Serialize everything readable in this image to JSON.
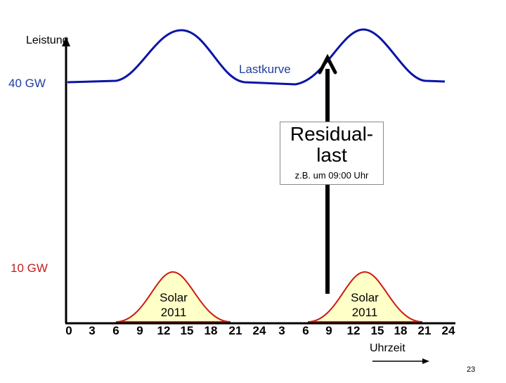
{
  "y_axis": {
    "title": "Leistung",
    "label_high": "40 GW",
    "label_low": "10 GW"
  },
  "load_curve": {
    "label": "Lastkurve"
  },
  "residual": {
    "title_line1": "Residual-",
    "title_line2": "last",
    "note": "z.B. um 09:00 Uhr"
  },
  "solar": [
    {
      "line1": "Solar",
      "line2": "2011"
    },
    {
      "line1": "Solar",
      "line2": "2011"
    }
  ],
  "x_axis": {
    "title": "Uhrzeit",
    "ticks": [
      "0",
      "3",
      "6",
      "9",
      "12",
      "15",
      "18",
      "21",
      "24",
      "3",
      "6",
      "9",
      "12",
      "15",
      "18",
      "21",
      "24"
    ]
  },
  "page_number": "23",
  "colors": {
    "load_curve": "#0a14a8",
    "solar_fill": "#ffffc8",
    "solar_stroke": "#cc1a10",
    "label_blue": "#1f3f9f",
    "label_red": "#c0201b"
  }
}
